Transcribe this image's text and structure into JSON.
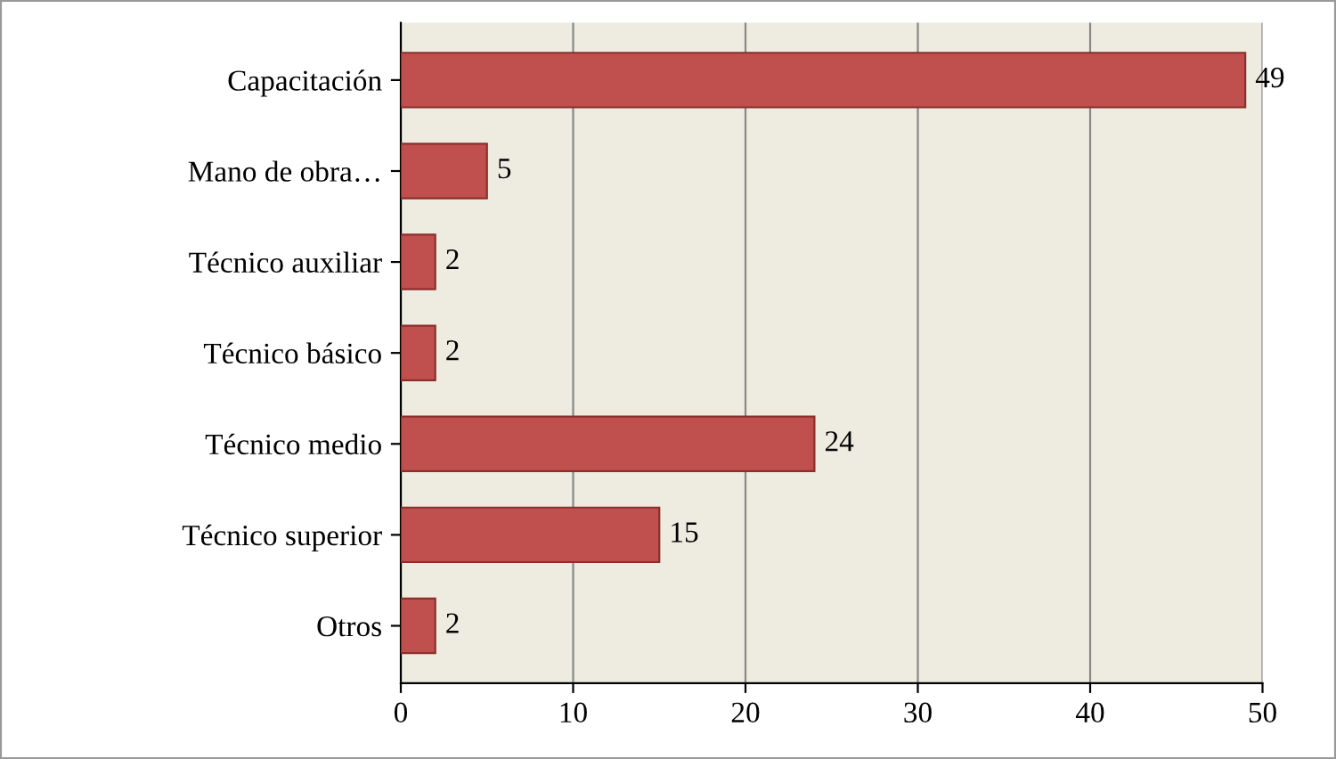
{
  "chart_data": {
    "type": "bar",
    "orientation": "horizontal",
    "categories": [
      "Capacitación",
      "Mano de obra…",
      "Técnico auxiliar",
      "Técnico básico",
      "Técnico medio",
      "Técnico superior",
      "Otros"
    ],
    "values": [
      49,
      5,
      2,
      2,
      24,
      15,
      2
    ],
    "color": "#c0504d",
    "xlim": [
      0,
      50
    ],
    "xticks": [
      0,
      10,
      20,
      30,
      40,
      50
    ],
    "grid": "x",
    "data_labels": true,
    "legend": false
  }
}
